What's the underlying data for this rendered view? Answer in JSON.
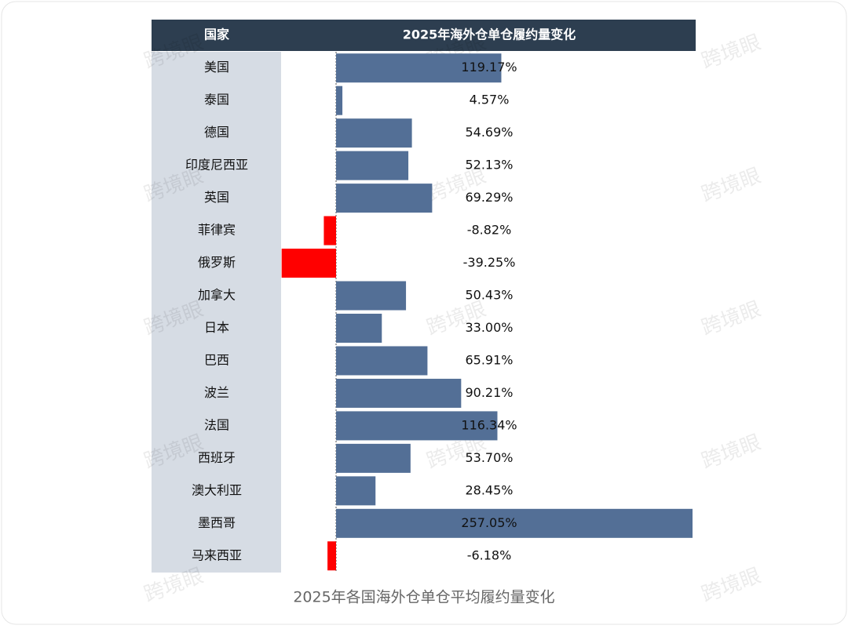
{
  "chart_data": {
    "type": "bar",
    "orientation": "horizontal",
    "column_headers": [
      "国家",
      "2025年海外仓单仓履约量变化"
    ],
    "title": "2025年各国海外仓单仓平均履约量变化",
    "watermark": "跨境眼",
    "categories": [
      "美国",
      "泰国",
      "德国",
      "印度尼西亚",
      "英国",
      "菲律宾",
      "俄罗斯",
      "加拿大",
      "日本",
      "巴西",
      "波兰",
      "法国",
      "西班牙",
      "澳大利亚",
      "墨西哥",
      "马来西亚"
    ],
    "values": [
      119.17,
      4.57,
      54.69,
      52.13,
      69.29,
      -8.82,
      -39.25,
      50.43,
      33.0,
      65.91,
      90.21,
      116.34,
      53.7,
      28.45,
      257.05,
      -6.18
    ],
    "value_labels": [
      "119.17%",
      "4.57%",
      "54.69%",
      "52.13%",
      "69.29%",
      "-8.82%",
      "-39.25%",
      "50.43%",
      "33.00%",
      "65.91%",
      "90.21%",
      "116.34%",
      "53.70%",
      "28.45%",
      "257.05%",
      "-6.18%"
    ],
    "color": "#536f96",
    "negative_color": "#ff0000"
  }
}
